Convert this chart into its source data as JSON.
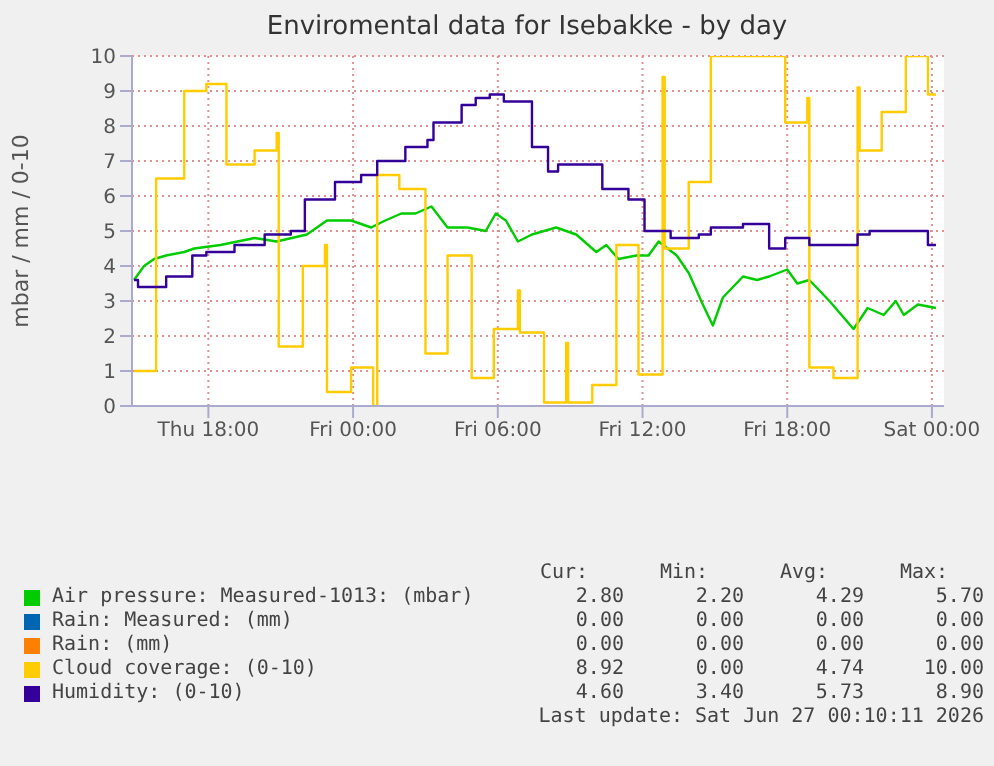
{
  "chart_data": {
    "type": "line",
    "title": "Enviromental data for Isebakke - by day",
    "ylabel": "mbar / mm / 0-10",
    "xlim": [
      "2026-06-25T14:50",
      "2026-06-27T00:30"
    ],
    "xticks": [
      {
        "value": "2026-06-25T18:00",
        "label": "Thu 18:00"
      },
      {
        "value": "2026-06-26T00:00",
        "label": "Fri 00:00"
      },
      {
        "value": "2026-06-26T06:00",
        "label": "Fri 06:00"
      },
      {
        "value": "2026-06-26T12:00",
        "label": "Fri 12:00"
      },
      {
        "value": "2026-06-26T18:00",
        "label": "Fri 18:00"
      },
      {
        "value": "2026-06-27T00:00",
        "label": "Sat 00:00"
      }
    ],
    "ylim": [
      0,
      10
    ],
    "yticks": [
      0,
      1,
      2,
      3,
      4,
      5,
      6,
      7,
      8,
      9,
      10
    ],
    "grid": true,
    "legend": "bottom",
    "series": [
      {
        "name": "Air pressure: Measured-1013: (mbar)",
        "color": "#00cc00",
        "type": "line",
        "x": [
          "2026-06-25T14:55",
          "2026-06-25T15:20",
          "2026-06-25T15:45",
          "2026-06-25T16:15",
          "2026-06-25T17:00",
          "2026-06-25T17:25",
          "2026-06-25T18:30",
          "2026-06-25T19:55",
          "2026-06-25T20:50",
          "2026-06-25T22:05",
          "2026-06-25T22:55",
          "2026-06-25T23:55",
          "2026-06-26T00:45",
          "2026-06-26T01:20",
          "2026-06-26T02:00",
          "2026-06-26T02:35",
          "2026-06-26T03:15",
          "2026-06-26T03:55",
          "2026-06-26T04:45",
          "2026-06-26T05:30",
          "2026-06-26T05:55",
          "2026-06-26T06:20",
          "2026-06-26T06:50",
          "2026-06-26T07:25",
          "2026-06-26T08:25",
          "2026-06-26T09:15",
          "2026-06-26T10:05",
          "2026-06-26T10:30",
          "2026-06-26T11:00",
          "2026-06-26T11:45",
          "2026-06-26T12:15",
          "2026-06-26T12:40",
          "2026-06-26T13:25",
          "2026-06-26T13:55",
          "2026-06-26T14:30",
          "2026-06-26T14:55",
          "2026-06-26T15:20",
          "2026-06-26T15:45",
          "2026-06-26T16:10",
          "2026-06-26T16:45",
          "2026-06-26T17:15",
          "2026-06-26T18:00",
          "2026-06-26T18:25",
          "2026-06-26T18:55",
          "2026-06-26T19:45",
          "2026-06-26T20:45",
          "2026-06-26T21:20",
          "2026-06-26T22:00",
          "2026-06-26T22:30",
          "2026-06-26T22:50",
          "2026-06-26T23:25",
          "2026-06-27T00:10"
        ],
        "values": [
          3.6,
          4.0,
          4.2,
          4.3,
          4.4,
          4.5,
          4.6,
          4.8,
          4.7,
          4.9,
          5.3,
          5.3,
          5.1,
          5.3,
          5.5,
          5.5,
          5.7,
          5.1,
          5.1,
          5.0,
          5.5,
          5.3,
          4.7,
          4.9,
          5.1,
          4.9,
          4.4,
          4.6,
          4.2,
          4.3,
          4.3,
          4.7,
          4.3,
          3.8,
          2.9,
          2.3,
          3.1,
          3.4,
          3.7,
          3.6,
          3.7,
          3.9,
          3.5,
          3.6,
          3.0,
          2.2,
          2.8,
          2.6,
          3.0,
          2.6,
          2.9,
          2.8
        ]
      },
      {
        "name": "Rain: Measured: (mm)",
        "color": "#0066b3",
        "type": "line"
      },
      {
        "name": "Rain: (mm)",
        "color": "#ff8000",
        "type": "line"
      },
      {
        "name": "Cloud coverage: (0-10)",
        "color": "#ffcc00",
        "type": "step",
        "x": [
          "2026-06-25T14:55",
          "2026-06-25T15:50",
          "2026-06-25T17:00",
          "2026-06-25T17:55",
          "2026-06-25T18:45",
          "2026-06-25T19:55",
          "2026-06-25T20:50",
          "2026-06-25T20:55",
          "2026-06-25T21:55",
          "2026-06-25T22:50",
          "2026-06-25T22:55",
          "2026-06-25T23:55",
          "2026-06-26T00:50",
          "2026-06-26T01:00",
          "2026-06-26T01:55",
          "2026-06-26T03:00",
          "2026-06-26T03:55",
          "2026-06-26T04:55",
          "2026-06-26T05:50",
          "2026-06-26T06:50",
          "2026-06-26T06:55",
          "2026-06-26T07:55",
          "2026-06-26T08:50",
          "2026-06-26T08:55",
          "2026-06-26T09:55",
          "2026-06-26T10:55",
          "2026-06-26T11:50",
          "2026-06-26T12:50",
          "2026-06-26T12:55",
          "2026-06-26T13:55",
          "2026-06-26T14:50",
          "2026-06-26T17:55",
          "2026-06-26T18:50",
          "2026-06-26T18:55",
          "2026-06-26T19:55",
          "2026-06-26T20:55",
          "2026-06-26T21:00",
          "2026-06-26T21:55",
          "2026-06-26T22:55",
          "2026-06-26T23:50",
          "2026-06-27T00:10"
        ],
        "values": [
          1.0,
          6.5,
          9.0,
          9.2,
          6.9,
          7.3,
          7.8,
          1.7,
          4.0,
          4.6,
          0.4,
          1.1,
          0.0,
          6.6,
          6.2,
          1.5,
          4.3,
          0.8,
          2.2,
          3.3,
          2.1,
          0.1,
          1.8,
          0.1,
          0.6,
          4.6,
          0.9,
          9.4,
          4.5,
          6.4,
          10.0,
          8.1,
          8.8,
          1.1,
          0.8,
          9.1,
          7.3,
          8.4,
          10.0,
          8.9,
          8.9
        ]
      },
      {
        "name": "Humidity: (0-10)",
        "color": "#330099",
        "type": "step",
        "x": [
          "2026-06-25T14:55",
          "2026-06-25T15:05",
          "2026-06-25T16:15",
          "2026-06-25T17:20",
          "2026-06-25T17:55",
          "2026-06-25T19:05",
          "2026-06-25T20:20",
          "2026-06-25T21:25",
          "2026-06-25T22:00",
          "2026-06-25T23:15",
          "2026-06-26T00:20",
          "2026-06-26T01:00",
          "2026-06-26T02:10",
          "2026-06-26T03:05",
          "2026-06-26T03:20",
          "2026-06-26T04:30",
          "2026-06-26T05:05",
          "2026-06-26T05:40",
          "2026-06-26T06:15",
          "2026-06-26T07:25",
          "2026-06-26T08:05",
          "2026-06-26T08:30",
          "2026-06-26T10:20",
          "2026-06-26T11:25",
          "2026-06-26T12:05",
          "2026-06-26T13:10",
          "2026-06-26T14:20",
          "2026-06-26T14:50",
          "2026-06-26T16:10",
          "2026-06-26T17:15",
          "2026-06-26T17:55",
          "2026-06-26T18:55",
          "2026-06-26T20:55",
          "2026-06-26T21:25",
          "2026-06-26T23:50",
          "2026-06-27T00:10"
        ],
        "values": [
          3.6,
          3.4,
          3.7,
          4.3,
          4.4,
          4.6,
          4.9,
          5.0,
          5.9,
          6.4,
          6.6,
          7.0,
          7.4,
          7.6,
          8.1,
          8.6,
          8.8,
          8.9,
          8.7,
          7.4,
          6.7,
          6.9,
          6.2,
          5.9,
          5.0,
          4.8,
          4.9,
          5.1,
          5.2,
          4.5,
          4.8,
          4.6,
          4.9,
          5.0,
          4.6,
          4.6
        ]
      }
    ],
    "annotations": [
      "Cur:",
      "Min:",
      "Avg:",
      "Max:",
      "2.80",
      "2.20",
      "4.29",
      "5.70",
      "0.00",
      "0.00",
      "0.00",
      "0.00",
      "0.00",
      "0.00",
      "0.00",
      "0.00",
      "8.92",
      "0.00",
      "4.74",
      "10.00",
      "4.60",
      "3.40",
      "5.73",
      "8.90",
      "Last update: Sat Jun 27 00:10:11 2026"
    ]
  }
}
